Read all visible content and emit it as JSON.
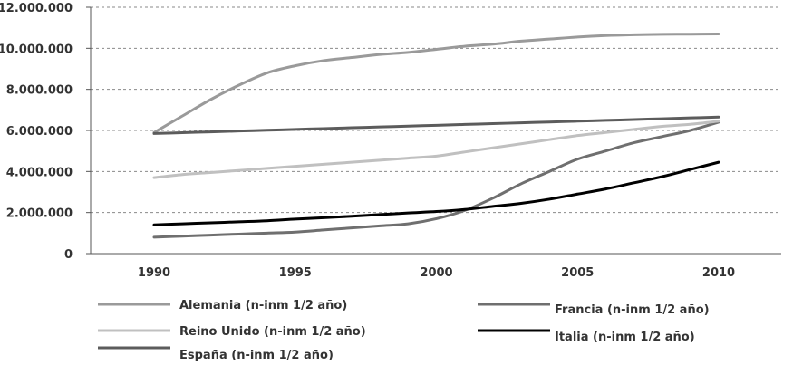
{
  "chart_data": {
    "type": "line",
    "title": "",
    "xlabel": "",
    "ylabel": "",
    "ylim": [
      0,
      12000000
    ],
    "xlim": [
      1990,
      2010
    ],
    "grid": "horizontal dashed",
    "legend_placement": "bottom",
    "x_ticks": [
      1990,
      1995,
      2000,
      2005,
      2010
    ],
    "x_tick_labels": [
      "1990",
      "1995",
      "2000",
      "2005",
      "2010"
    ],
    "y_ticks": [
      0,
      2000000,
      4000000,
      6000000,
      8000000,
      10000000,
      12000000
    ],
    "y_tick_labels": [
      "0",
      "2.000.000",
      "4.000.000",
      "6.000.000",
      "8.000.000",
      "10.000.000",
      "12.000.000"
    ],
    "series": [
      {
        "name": "Alemania (n-inm 1/2 año)",
        "color": "#9a9a9a",
        "x": [
          1990,
          1991,
          1992,
          1993,
          1994,
          1995,
          1996,
          1997,
          1998,
          1999,
          2000,
          2001,
          2002,
          2003,
          2004,
          2005,
          2006,
          2007,
          2008,
          2009,
          2010
        ],
        "values": [
          5900000,
          6700000,
          7500000,
          8200000,
          8800000,
          9150000,
          9400000,
          9550000,
          9700000,
          9800000,
          9950000,
          10100000,
          10200000,
          10350000,
          10450000,
          10550000,
          10620000,
          10660000,
          10680000,
          10690000,
          10700000
        ]
      },
      {
        "name": "Francia (n-inm 1/2 año)",
        "color": "#6f6f6f",
        "x": [
          1990,
          1991,
          1992,
          1993,
          1994,
          1995,
          1996,
          1997,
          1998,
          1999,
          2000,
          2001,
          2002,
          2003,
          2004,
          2005,
          2006,
          2007,
          2008,
          2009,
          2010
        ],
        "values": [
          800000,
          850000,
          900000,
          950000,
          1000000,
          1050000,
          1150000,
          1250000,
          1350000,
          1450000,
          1700000,
          2100000,
          2700000,
          3400000,
          4000000,
          4600000,
          5000000,
          5400000,
          5700000,
          6000000,
          6400000
        ]
      },
      {
        "name": "Reino Unido (n-inm 1/2 año)",
        "color": "#c0c0c0",
        "x": [
          1990,
          1991,
          1992,
          1993,
          1994,
          1995,
          1996,
          1997,
          1998,
          1999,
          2000,
          2001,
          2002,
          2003,
          2004,
          2005,
          2006,
          2007,
          2008,
          2009,
          2010
        ],
        "values": [
          3700000,
          3850000,
          3950000,
          4050000,
          4150000,
          4250000,
          4350000,
          4450000,
          4550000,
          4650000,
          4750000,
          4950000,
          5150000,
          5350000,
          5550000,
          5750000,
          5900000,
          6050000,
          6200000,
          6300000,
          6450000
        ]
      },
      {
        "name": "Italia (n-inm 1/2 año)",
        "color": "#000000",
        "x": [
          1990,
          1991,
          1992,
          1993,
          1994,
          1995,
          1996,
          1997,
          1998,
          1999,
          2000,
          2001,
          2002,
          2003,
          2004,
          2005,
          2006,
          2007,
          2008,
          2009,
          2010
        ],
        "values": [
          1400000,
          1450000,
          1500000,
          1550000,
          1600000,
          1680000,
          1750000,
          1820000,
          1900000,
          1980000,
          2050000,
          2150000,
          2300000,
          2450000,
          2650000,
          2900000,
          3150000,
          3450000,
          3750000,
          4100000,
          4450000
        ]
      },
      {
        "name": "España (n-inm 1/2 año)",
        "color": "#5c5c5c",
        "x": [
          1990,
          1991,
          1992,
          1993,
          1994,
          1995,
          1996,
          1997,
          1998,
          1999,
          2000,
          2001,
          2002,
          2003,
          2004,
          2005,
          2006,
          2007,
          2008,
          2009,
          2010
        ],
        "values": [
          5850000,
          5890000,
          5930000,
          5970000,
          6010000,
          6050000,
          6090000,
          6130000,
          6170000,
          6210000,
          6250000,
          6290000,
          6330000,
          6370000,
          6410000,
          6450000,
          6490000,
          6530000,
          6570000,
          6610000,
          6650000
        ]
      }
    ]
  }
}
